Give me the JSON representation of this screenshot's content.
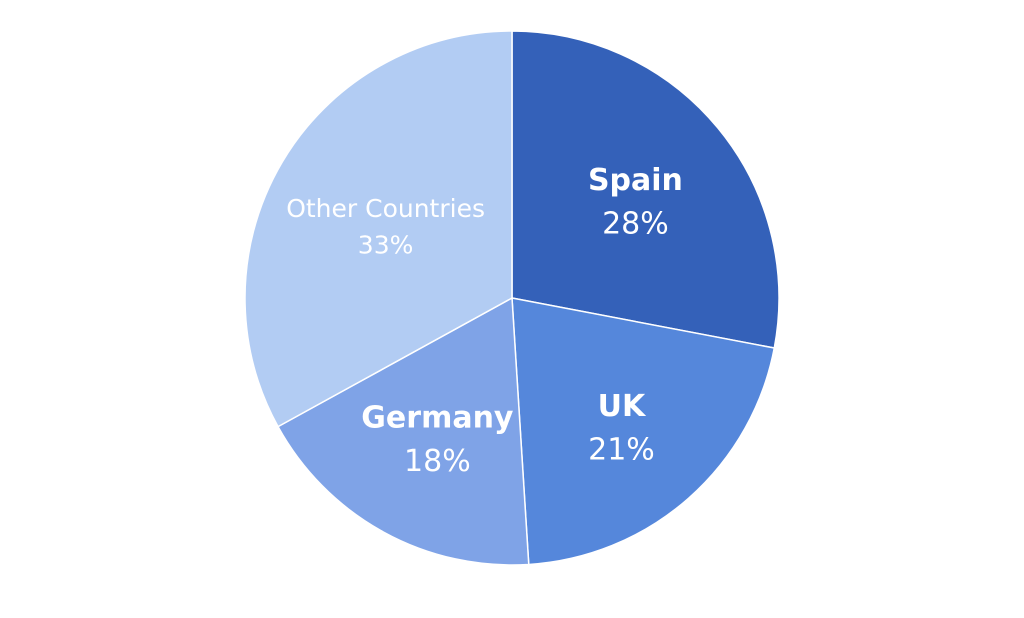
{
  "chart_data": {
    "type": "pie",
    "title": "",
    "start": "top",
    "direction": "clockwise",
    "slices": [
      {
        "label": "Spain",
        "value": 28,
        "display": "28%",
        "color": "#3461B9"
      },
      {
        "label": "UK",
        "value": 21,
        "display": "21%",
        "color": "#5587DB"
      },
      {
        "label": "Germany",
        "value": 18,
        "display": "18%",
        "color": "#7FA3E7"
      },
      {
        "label": "Other Countries",
        "value": 33,
        "display": "33%",
        "color": "#B2CCF3"
      }
    ]
  }
}
